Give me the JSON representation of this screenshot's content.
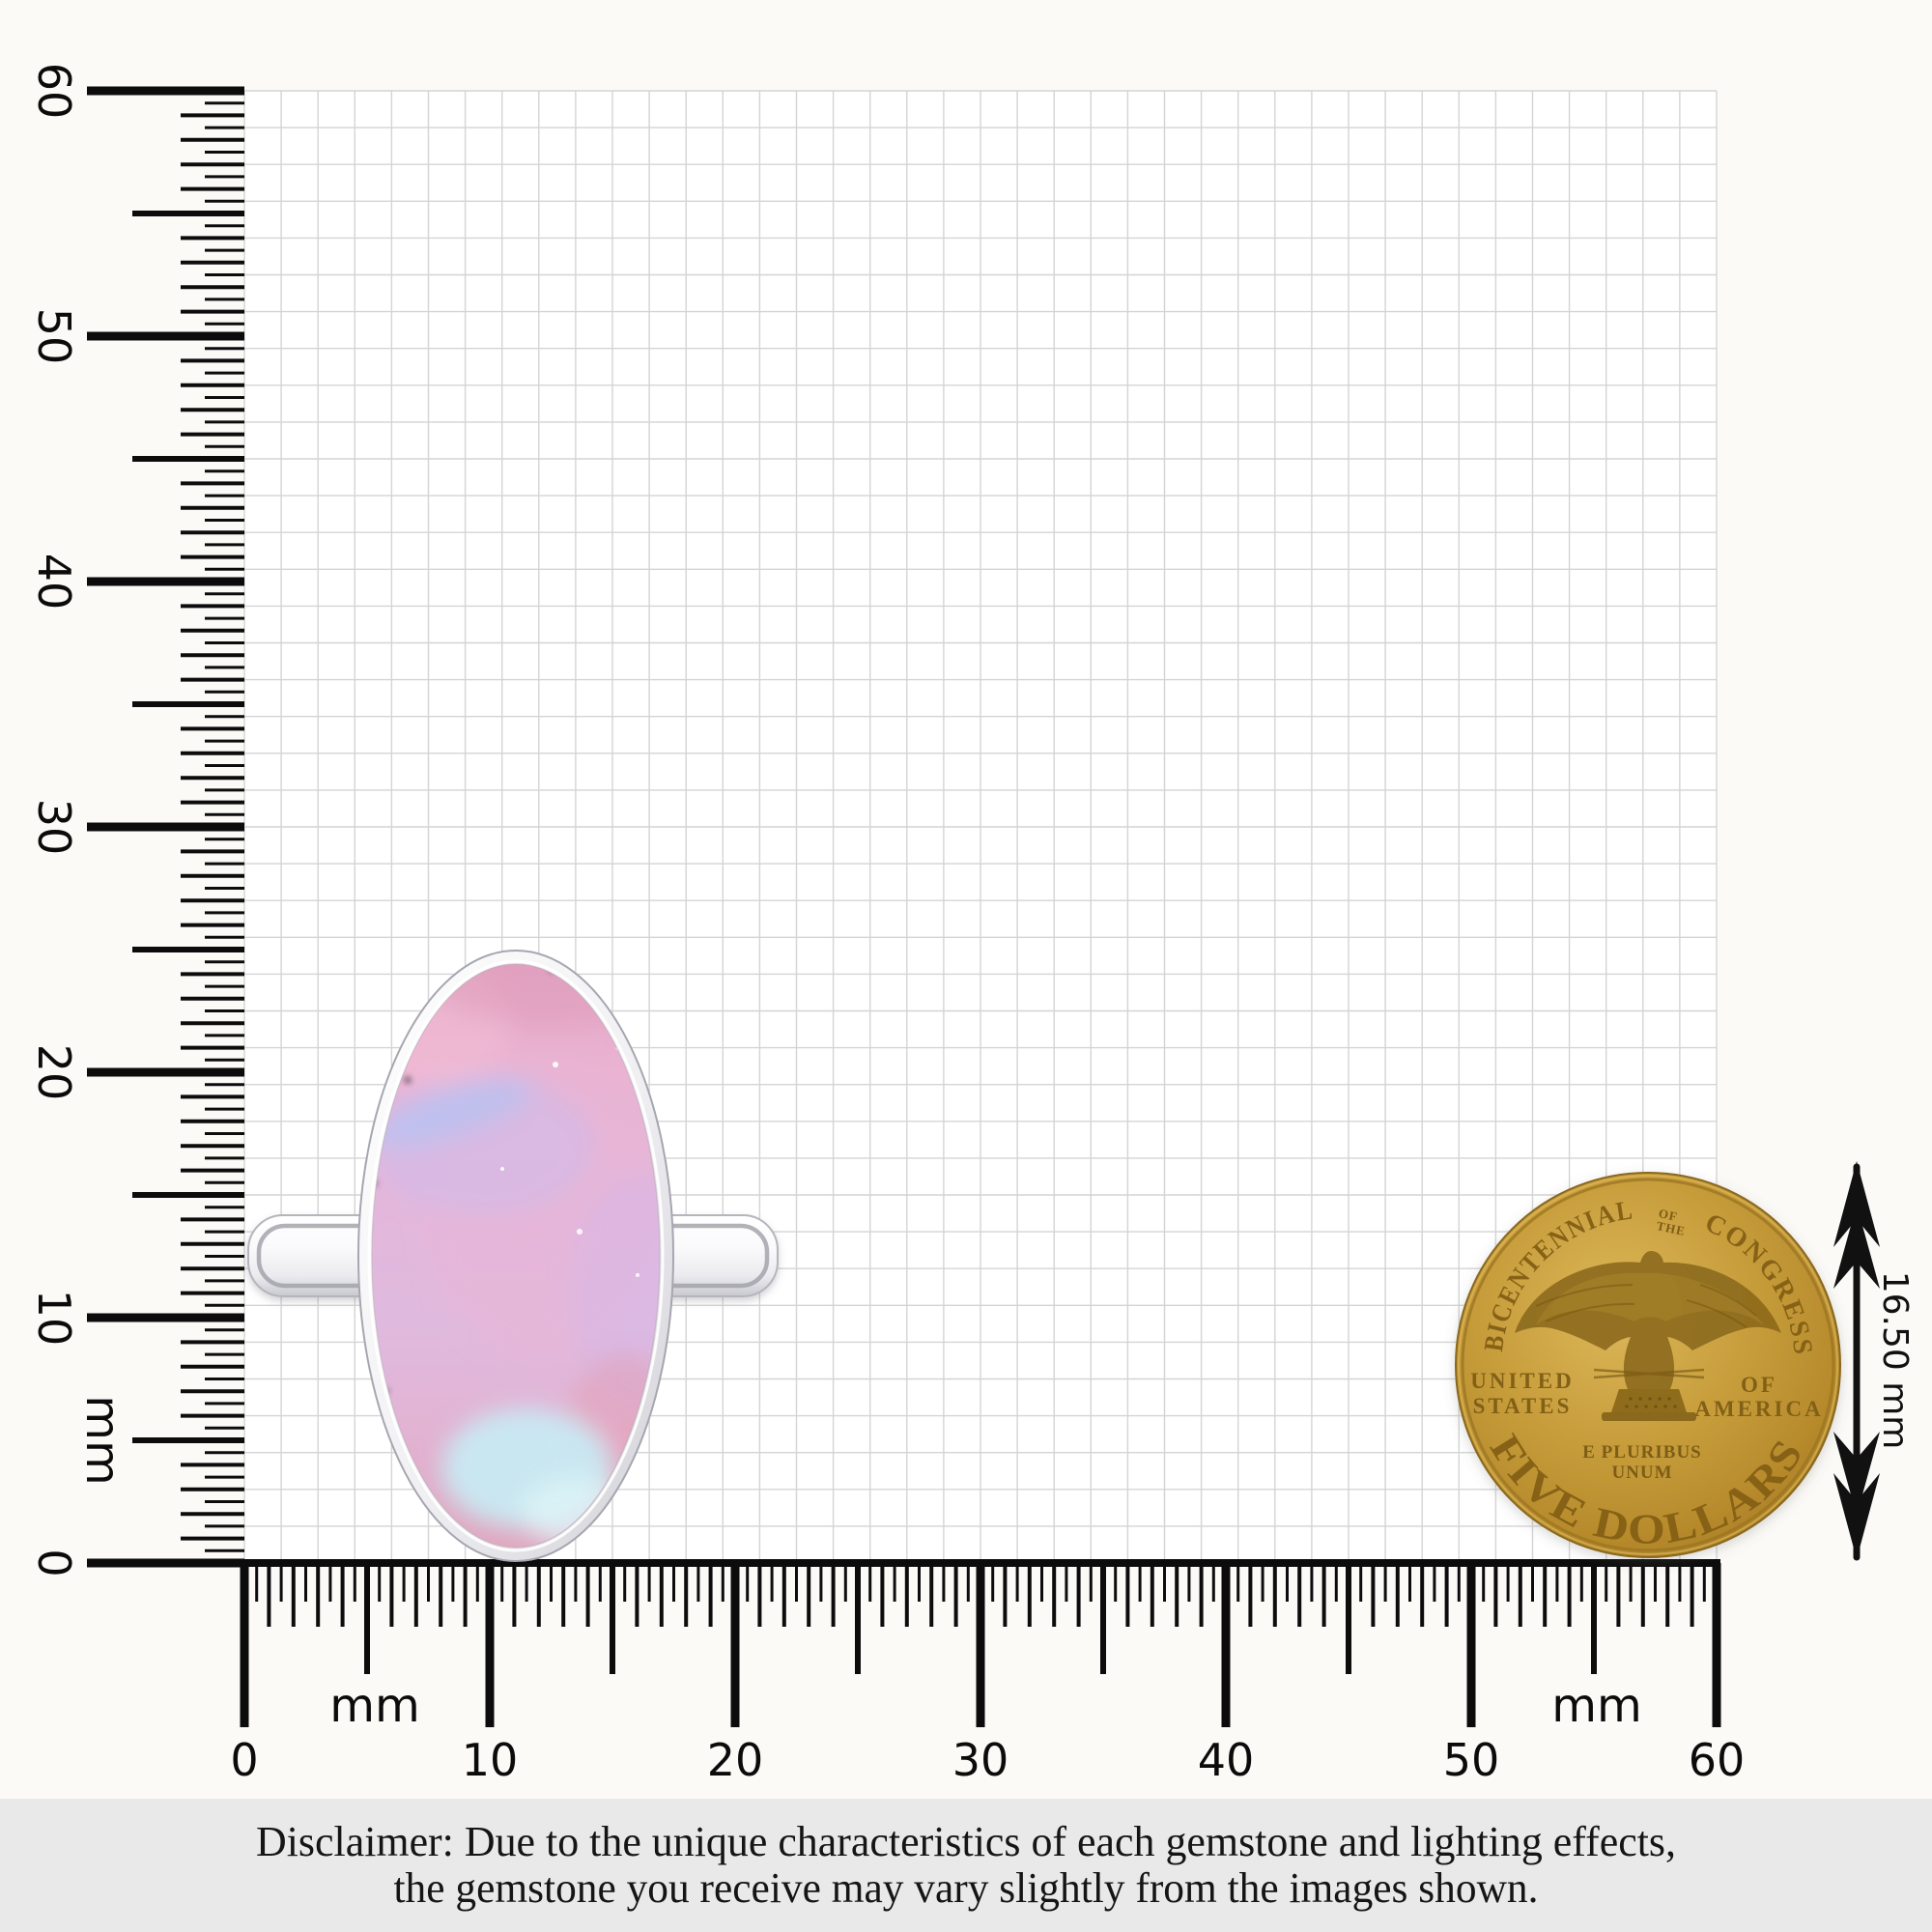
{
  "scale": {
    "unit": "mm",
    "left_labels": [
      "0",
      "10",
      "20",
      "30",
      "40",
      "50",
      "60"
    ],
    "bottom_labels": [
      "0",
      "10",
      "20",
      "30",
      "40",
      "50",
      "60"
    ]
  },
  "coin": {
    "legend_top_left": "BICENTENNIAL",
    "legend_of": "OF",
    "legend_the": "THE",
    "legend_top_right": "CONGRESS",
    "left_line1": "UNITED",
    "left_line2": "STATES",
    "right_line1": "OF",
    "right_line2": "AMERICA",
    "motto_line1": "E PLURIBUS",
    "motto_line2": "UNUM",
    "legend_bottom": "FIVE DOLLARS",
    "diameter_label": "16.50 mm"
  },
  "disclaimer": {
    "line1": "Disclaimer: Due to the unique characteristics of each gemstone and lighting effects,",
    "line2": "the gemstone you receive may vary slightly from the images shown."
  },
  "colors": {
    "ruler_ink": "#0c0c0c",
    "grid_line": "#d4d4d4",
    "coin_gold": "#c79d3a",
    "stone_pink": "#e8b0d0",
    "metal_silver": "#eeeef2",
    "disclaimer_band": "#e9e9e9"
  }
}
